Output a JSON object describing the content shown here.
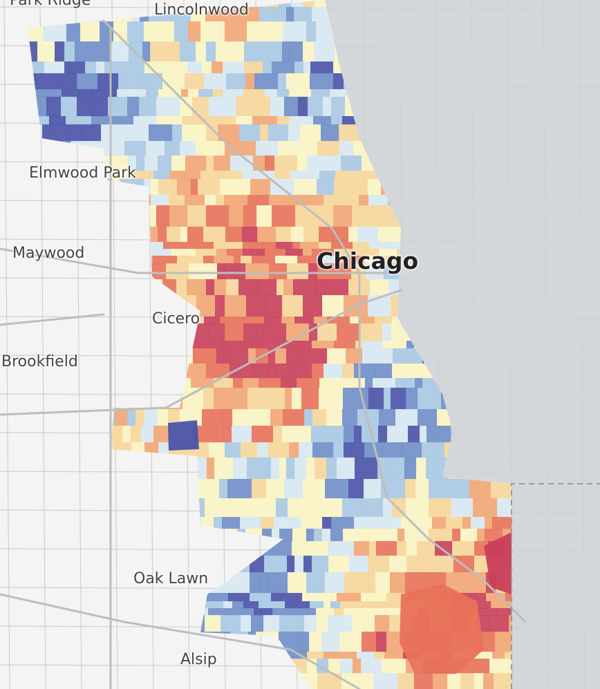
{
  "map": {
    "labels": {
      "park_ridge": "Park Ridge",
      "lincolnwood": "Lincolnwood",
      "elmwood_park": "Elmwood Park",
      "maywood": "Maywood",
      "chicago": "Chicago",
      "cicero": "Cicero",
      "brookfield": "Brookfield",
      "oak_lawn": "Oak Lawn",
      "alsip": "Alsip"
    },
    "colors": {
      "background": "#f4f4f4",
      "water": "#d4d7da",
      "road": "#cfcfcf",
      "highway": "#bdbdbd",
      "scale": [
        "#4a53a8",
        "#6f8ec8",
        "#a9c9e3",
        "#d8e9f2",
        "#fbf5c4",
        "#f7d79a",
        "#f2a673",
        "#e8725a",
        "#c93f5a"
      ]
    }
  }
}
